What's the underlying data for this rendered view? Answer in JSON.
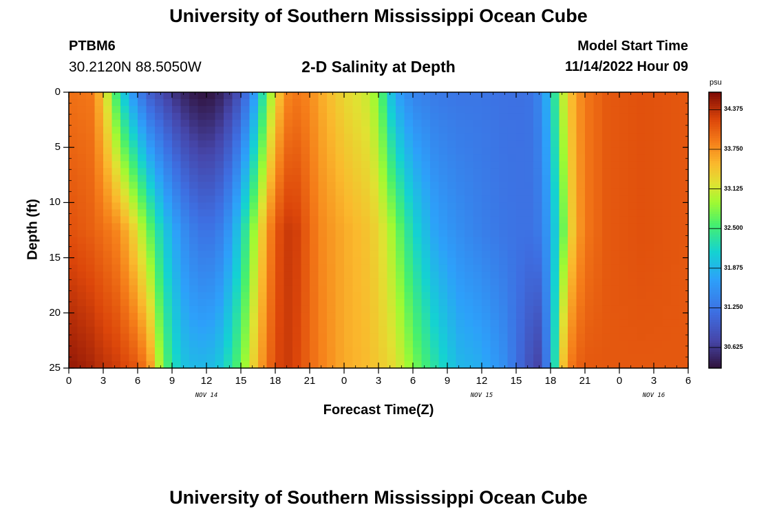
{
  "header": {
    "title": "University of Southern Mississippi Ocean Cube",
    "station_id": "PTBM6",
    "coordinates": "30.2120N  88.5050W",
    "subtitle": "2-D Salinity at Depth",
    "model_start_label": "Model Start Time",
    "model_start_value": "11/14/2022 Hour 09"
  },
  "footer": {
    "title": "University of Southern Mississippi Ocean Cube"
  },
  "chart_data": {
    "type": "heatmap",
    "xlabel": "Forecast Time(Z)",
    "ylabel": "Depth (ft)",
    "x_tick_labels": [
      "0",
      "3",
      "6",
      "9",
      "12",
      "15",
      "18",
      "21",
      "0",
      "3",
      "6",
      "9",
      "12",
      "15",
      "18",
      "21",
      "0",
      "3",
      "6"
    ],
    "x_range_hours": [
      0,
      54
    ],
    "date_labels": [
      {
        "label": "NOV 14",
        "hour": 12
      },
      {
        "label": "NOV 15",
        "hour": 36
      },
      {
        "label": "NOV 16",
        "hour": 51
      }
    ],
    "y_tick_labels": [
      "0",
      "5",
      "10",
      "15",
      "20",
      "25"
    ],
    "y_range": [
      0,
      25
    ],
    "y_inverted": true,
    "colorbar": {
      "unit": "psu",
      "range": [
        30.3,
        34.65
      ],
      "tick_labels": [
        "34.375",
        "33.750",
        "33.125",
        "32.500",
        "31.875",
        "31.250",
        "30.625"
      ],
      "tick_values": [
        34.375,
        33.75,
        33.125,
        32.5,
        31.875,
        31.25,
        30.625
      ]
    },
    "columns_by_hour": [
      {
        "hour": 0,
        "surface": 33.95,
        "middle": 34.15,
        "bottom": 34.55
      },
      {
        "hour": 2,
        "surface": 33.9,
        "middle": 34.05,
        "bottom": 34.45
      },
      {
        "hour": 3,
        "surface": 33.4,
        "middle": 33.95,
        "bottom": 34.35
      },
      {
        "hour": 4,
        "surface": 32.6,
        "middle": 33.85,
        "bottom": 34.3
      },
      {
        "hour": 5,
        "surface": 31.9,
        "middle": 33.6,
        "bottom": 34.2
      },
      {
        "hour": 6,
        "surface": 31.4,
        "middle": 33.2,
        "bottom": 34.1
      },
      {
        "hour": 7,
        "surface": 31.0,
        "middle": 32.7,
        "bottom": 33.8
      },
      {
        "hour": 8,
        "surface": 30.8,
        "middle": 32.2,
        "bottom": 32.9
      },
      {
        "hour": 9,
        "surface": 30.6,
        "middle": 31.8,
        "bottom": 32.3
      },
      {
        "hour": 10,
        "surface": 30.45,
        "middle": 31.5,
        "bottom": 32.0
      },
      {
        "hour": 11,
        "surface": 30.35,
        "middle": 31.3,
        "bottom": 31.9
      },
      {
        "hour": 12,
        "surface": 30.3,
        "middle": 31.2,
        "bottom": 31.9
      },
      {
        "hour": 13,
        "surface": 30.4,
        "middle": 31.3,
        "bottom": 32.0
      },
      {
        "hour": 14,
        "surface": 30.6,
        "middle": 31.6,
        "bottom": 32.3
      },
      {
        "hour": 15,
        "surface": 30.9,
        "middle": 32.1,
        "bottom": 32.7
      },
      {
        "hour": 16,
        "surface": 31.5,
        "middle": 32.8,
        "bottom": 33.3
      },
      {
        "hour": 17,
        "surface": 32.4,
        "middle": 33.5,
        "bottom": 33.8
      },
      {
        "hour": 18,
        "surface": 33.3,
        "middle": 34.1,
        "bottom": 34.2
      },
      {
        "hour": 19,
        "surface": 33.8,
        "middle": 34.3,
        "bottom": 34.3
      },
      {
        "hour": 20,
        "surface": 33.9,
        "middle": 34.25,
        "bottom": 34.2
      },
      {
        "hour": 21,
        "surface": 33.8,
        "middle": 34.0,
        "bottom": 34.0
      },
      {
        "hour": 22,
        "surface": 33.6,
        "middle": 33.8,
        "bottom": 33.85
      },
      {
        "hour": 24,
        "surface": 33.3,
        "middle": 33.6,
        "bottom": 33.6
      },
      {
        "hour": 26,
        "surface": 33.1,
        "middle": 33.45,
        "bottom": 33.5
      },
      {
        "hour": 27,
        "surface": 32.8,
        "middle": 33.3,
        "bottom": 33.4
      },
      {
        "hour": 28,
        "surface": 32.0,
        "middle": 33.0,
        "bottom": 33.3
      },
      {
        "hour": 29,
        "surface": 31.6,
        "middle": 32.6,
        "bottom": 33.1
      },
      {
        "hour": 30,
        "surface": 31.4,
        "middle": 32.2,
        "bottom": 32.8
      },
      {
        "hour": 32,
        "surface": 31.3,
        "middle": 31.7,
        "bottom": 32.3
      },
      {
        "hour": 34,
        "surface": 31.25,
        "middle": 31.5,
        "bottom": 31.9
      },
      {
        "hour": 36,
        "surface": 31.25,
        "middle": 31.35,
        "bottom": 31.8
      },
      {
        "hour": 38,
        "surface": 31.2,
        "middle": 31.25,
        "bottom": 31.5
      },
      {
        "hour": 40,
        "surface": 31.2,
        "middle": 31.2,
        "bottom": 30.9
      },
      {
        "hour": 41,
        "surface": 31.4,
        "middle": 31.3,
        "bottom": 30.7
      },
      {
        "hour": 42,
        "surface": 32.0,
        "middle": 31.7,
        "bottom": 31.6
      },
      {
        "hour": 43,
        "surface": 33.0,
        "middle": 32.6,
        "bottom": 33.4
      },
      {
        "hour": 44,
        "surface": 33.6,
        "middle": 33.5,
        "bottom": 34.0
      },
      {
        "hour": 45,
        "surface": 33.9,
        "middle": 33.9,
        "bottom": 34.1
      },
      {
        "hour": 47,
        "surface": 34.1,
        "middle": 34.1,
        "bottom": 34.1
      },
      {
        "hour": 50,
        "surface": 34.15,
        "middle": 34.15,
        "bottom": 34.1
      },
      {
        "hour": 54,
        "surface": 34.1,
        "middle": 34.1,
        "bottom": 34.1
      }
    ]
  }
}
